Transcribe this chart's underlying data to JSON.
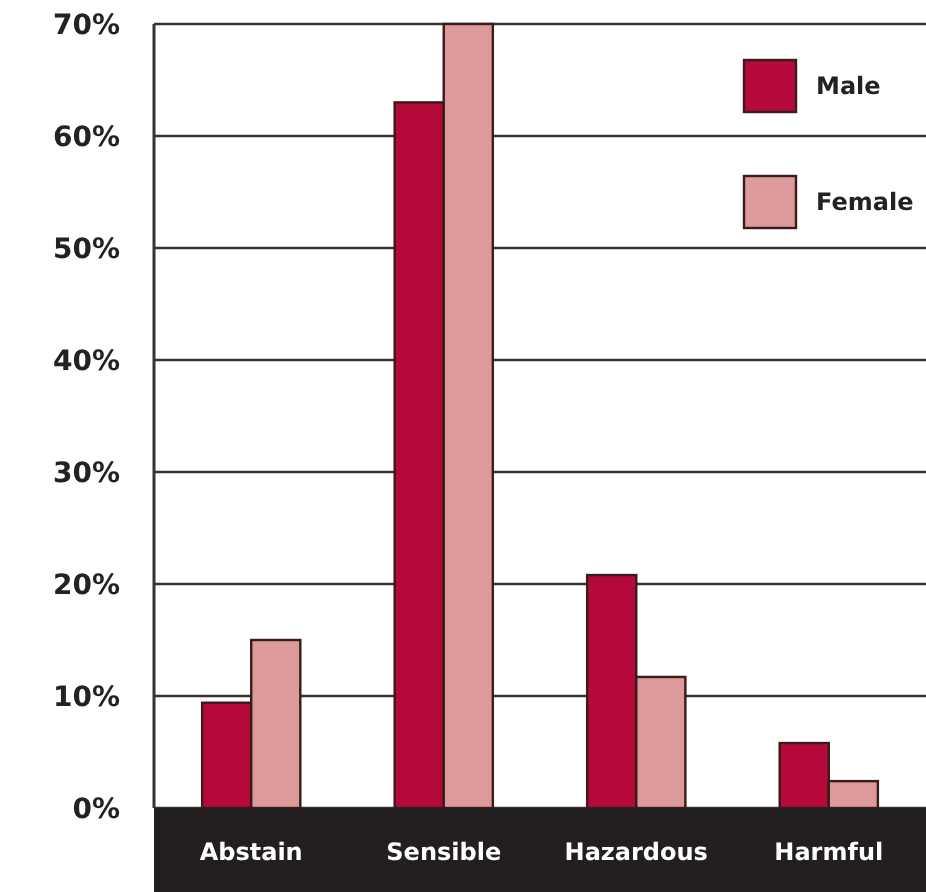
{
  "chart_data": {
    "type": "bar",
    "categories": [
      "Abstain",
      "Sensible",
      "Hazardous",
      "Harmful"
    ],
    "series": [
      {
        "name": "Male",
        "color": "#b5093a",
        "values": [
          9.4,
          63,
          20.8,
          5.8
        ]
      },
      {
        "name": "Female",
        "color": "#dc9a9a",
        "values": [
          15,
          70,
          11.7,
          2.4
        ]
      }
    ],
    "ylim": [
      0,
      70
    ],
    "yticks": [
      {
        "value": 0,
        "label": "0%"
      },
      {
        "value": 10,
        "label": "10%"
      },
      {
        "value": 20,
        "label": "20%"
      },
      {
        "value": 30,
        "label": "30%"
      },
      {
        "value": 40,
        "label": "40%"
      },
      {
        "value": 50,
        "label": "50%"
      },
      {
        "value": 60,
        "label": "60%"
      },
      {
        "value": 70,
        "label": "70%"
      }
    ],
    "grid": "y",
    "legend": "top right"
  }
}
